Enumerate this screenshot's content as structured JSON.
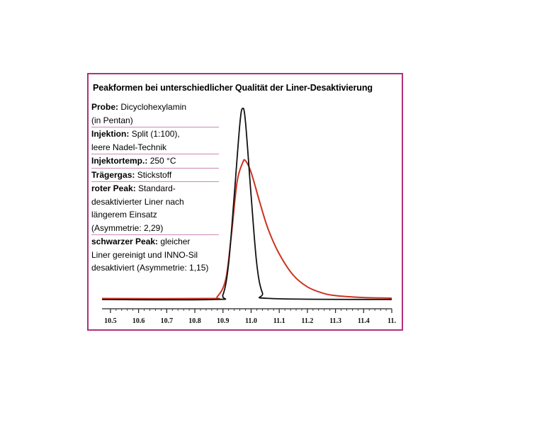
{
  "chart_data": {
    "type": "line",
    "title": "Peakformen bei unterschiedlicher Qualität der Liner-Desaktivierung",
    "xlabel": "",
    "ylabel": "",
    "xlim": [
      10.47,
      11.5
    ],
    "ylim": [
      0,
      1
    ],
    "x_ticks": [
      "10.5",
      "10.6",
      "10.7",
      "10.8",
      "10.9",
      "11.0",
      "11.1",
      "11.2",
      "11.3",
      "11.4",
      "11."
    ],
    "series": [
      {
        "color": "#cc3322",
        "points": [
          [
            10.47,
            0.02
          ],
          [
            10.85,
            0.02
          ],
          [
            10.88,
            0.03
          ],
          [
            10.91,
            0.12
          ],
          [
            10.93,
            0.35
          ],
          [
            10.95,
            0.62
          ],
          [
            10.97,
            0.72
          ],
          [
            10.98,
            0.73
          ],
          [
            11.0,
            0.67
          ],
          [
            11.03,
            0.52
          ],
          [
            11.06,
            0.38
          ],
          [
            11.1,
            0.25
          ],
          [
            11.15,
            0.14
          ],
          [
            11.2,
            0.08
          ],
          [
            11.25,
            0.05
          ],
          [
            11.3,
            0.035
          ],
          [
            11.4,
            0.025
          ],
          [
            11.5,
            0.022
          ]
        ]
      },
      {
        "color": "#111111",
        "points": [
          [
            10.47,
            0.015
          ],
          [
            10.87,
            0.015
          ],
          [
            10.9,
            0.04
          ],
          [
            10.92,
            0.2
          ],
          [
            10.94,
            0.55
          ],
          [
            10.96,
            0.92
          ],
          [
            10.97,
            1.0
          ],
          [
            10.98,
            0.93
          ],
          [
            11.0,
            0.55
          ],
          [
            11.02,
            0.2
          ],
          [
            11.04,
            0.05
          ],
          [
            11.07,
            0.02
          ],
          [
            11.5,
            0.015
          ]
        ]
      }
    ]
  },
  "info": [
    {
      "label": "Probe:",
      "lines": [
        "Dicyclohexylamin",
        "(in Pentan)"
      ]
    },
    {
      "label": "Injektion:",
      "lines": [
        "Split (1:100),",
        "leere Nadel-Technik"
      ]
    },
    {
      "label": "Injektortemp.:",
      "lines": [
        "250 °C"
      ]
    },
    {
      "label": "Trägergas:",
      "lines": [
        "Stickstoff"
      ]
    },
    {
      "label": "roter Peak:",
      "lines": [
        "Standard-",
        "desaktivierter Liner nach",
        "längerem Einsatz",
        "(Asymmetrie: 2,29)"
      ]
    },
    {
      "label": "schwarzer Peak:",
      "lines": [
        "gleicher",
        "Liner gereinigt und INNO-Sil",
        "desaktiviert (Asymmetrie: 1,15)"
      ]
    }
  ]
}
